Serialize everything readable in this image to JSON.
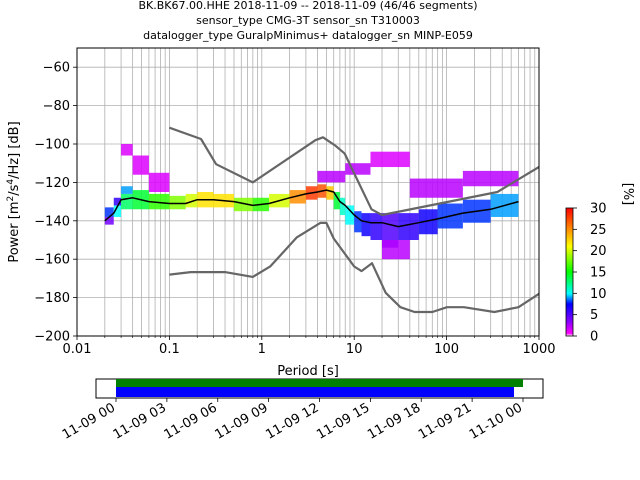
{
  "title_lines": [
    "BK.BK67.00.HHE   2018-11-09 -- 2018-11-09  (46/46 segments)",
    "sensor_type CMG-3T sensor_sn T310003",
    "datalogger_type GuralpMinimus+ datalogger_sn MINP-E059"
  ],
  "colorbar": {
    "label": "[%]",
    "ticks": [
      "0",
      "5",
      "10",
      "15",
      "20",
      "25",
      "30"
    ],
    "range": [
      0,
      30
    ]
  },
  "timeline": {
    "tick_labels": [
      "11-09 00",
      "11-09 03",
      "11-09 06",
      "11-09 09",
      "11-09 12",
      "11-09 15",
      "11-09 18",
      "11-09 21",
      "11-10 00"
    ],
    "green_bar_color": "#008000",
    "blue_bar_color": "#0000ff"
  },
  "chart_data": {
    "type": "heatmap",
    "title": "BK.BK67.00.HHE   2018-11-09 -- 2018-11-09  (46/46 segments)",
    "xlabel": "Period [s]",
    "ylabel_parts": [
      "Power [m",
      "2",
      "/s",
      "4",
      "/Hz] [dB]"
    ],
    "x_scale": "log",
    "xlim": [
      0.01,
      1000
    ],
    "ylim": [
      -200,
      -50
    ],
    "x_tick_values": [
      0.01,
      0.1,
      1,
      10,
      100,
      1000
    ],
    "x_tick_labels": [
      "0.01",
      "0.1",
      "1",
      "10",
      "100",
      "1000"
    ],
    "y_tick_values": [
      -200,
      -180,
      -160,
      -140,
      -120,
      -100,
      -80,
      -60
    ],
    "y_tick_labels": [
      "−200",
      "−180",
      "−160",
      "−140",
      "−120",
      "−100",
      "−80",
      "−60"
    ],
    "grid": true,
    "series": [
      {
        "style": "noise-model-high",
        "color": "#666666",
        "x": [
          0.1,
          0.22,
          0.32,
          0.8,
          3.8,
          4.6,
          6.3,
          7.9,
          15.4,
          20,
          354.8,
          1000
        ],
        "y": [
          -91.5,
          -97.4,
          -110.5,
          -120,
          -98,
          -96.5,
          -101,
          -105,
          -134,
          -137,
          -125,
          -112
        ]
      },
      {
        "style": "noise-model-low",
        "color": "#666666",
        "x": [
          0.1,
          0.17,
          0.4,
          0.8,
          1.24,
          2.4,
          4.3,
          5,
          6,
          10,
          12,
          15.6,
          21.9,
          31.6,
          45,
          70,
          101,
          154,
          328,
          600,
          1000
        ],
        "y": [
          -168,
          -166.7,
          -166.7,
          -169.2,
          -163.7,
          -148.6,
          -141.1,
          -141.1,
          -149.2,
          -163.8,
          -166.2,
          -162.1,
          -177.5,
          -185,
          -187.5,
          -187.5,
          -185,
          -185,
          -187.5,
          -185,
          -178
        ]
      },
      {
        "style": "mode",
        "color": "#000000",
        "x": [
          0.02,
          0.025,
          0.03,
          0.04,
          0.06,
          0.1,
          0.15,
          0.2,
          0.3,
          0.5,
          0.8,
          1.2,
          2,
          3,
          4,
          5,
          6,
          7,
          8,
          10,
          12,
          15,
          20,
          30,
          50,
          80,
          150,
          300,
          600
        ],
        "y": [
          -140,
          -136,
          -129,
          -128,
          -130,
          -131,
          -131,
          -129,
          -129,
          -130,
          -132,
          -131,
          -128,
          -126,
          -125,
          -124,
          -125,
          -130,
          -132,
          -137,
          -140,
          -141,
          -141,
          -143,
          -141,
          -139,
          -136,
          -134,
          -130
        ]
      }
    ],
    "heatmap_cells": [
      {
        "x": [
          0.02,
          0.025
        ],
        "y": [
          -142,
          -138
        ],
        "pct": 4
      },
      {
        "x": [
          0.02,
          0.025
        ],
        "y": [
          -138,
          -133
        ],
        "pct": 8
      },
      {
        "x": [
          0.025,
          0.03
        ],
        "y": [
          -138,
          -132
        ],
        "pct": 10
      },
      {
        "x": [
          0.025,
          0.03
        ],
        "y": [
          -132,
          -128
        ],
        "pct": 6
      },
      {
        "x": [
          0.03,
          0.04
        ],
        "y": [
          -134,
          -126
        ],
        "pct": 13
      },
      {
        "x": [
          0.03,
          0.04
        ],
        "y": [
          -126,
          -122
        ],
        "pct": 9
      },
      {
        "x": [
          0.04,
          0.06
        ],
        "y": [
          -134,
          -124
        ],
        "pct": 14
      },
      {
        "x": [
          0.06,
          0.1
        ],
        "y": [
          -134,
          -126
        ],
        "pct": 16
      },
      {
        "x": [
          0.1,
          0.15
        ],
        "y": [
          -134,
          -127
        ],
        "pct": 18
      },
      {
        "x": [
          0.15,
          0.2
        ],
        "y": [
          -133,
          -126
        ],
        "pct": 20
      },
      {
        "x": [
          0.2,
          0.3
        ],
        "y": [
          -133,
          -125
        ],
        "pct": 22
      },
      {
        "x": [
          0.3,
          0.5
        ],
        "y": [
          -133,
          -126
        ],
        "pct": 22
      },
      {
        "x": [
          0.5,
          0.8
        ],
        "y": [
          -135,
          -128
        ],
        "pct": 18
      },
      {
        "x": [
          0.8,
          1.2
        ],
        "y": [
          -135,
          -128
        ],
        "pct": 16
      },
      {
        "x": [
          1.2,
          2
        ],
        "y": [
          -133,
          -126
        ],
        "pct": 20
      },
      {
        "x": [
          2,
          3
        ],
        "y": [
          -131,
          -124
        ],
        "pct": 25
      },
      {
        "x": [
          3,
          4
        ],
        "y": [
          -129,
          -122
        ],
        "pct": 28
      },
      {
        "x": [
          4,
          5
        ],
        "y": [
          -128,
          -121
        ],
        "pct": 27
      },
      {
        "x": [
          5,
          6
        ],
        "y": [
          -129,
          -122
        ],
        "pct": 23
      },
      {
        "x": [
          6,
          7
        ],
        "y": [
          -134,
          -125
        ],
        "pct": 14
      },
      {
        "x": [
          7,
          8
        ],
        "y": [
          -137,
          -128
        ],
        "pct": 11
      },
      {
        "x": [
          8,
          10
        ],
        "y": [
          -142,
          -132
        ],
        "pct": 10
      },
      {
        "x": [
          10,
          12
        ],
        "y": [
          -146,
          -135
        ],
        "pct": 8
      },
      {
        "x": [
          12,
          15
        ],
        "y": [
          -148,
          -136
        ],
        "pct": 7
      },
      {
        "x": [
          15,
          20
        ],
        "y": [
          -150,
          -136
        ],
        "pct": 6
      },
      {
        "x": [
          20,
          30
        ],
        "y": [
          -154,
          -136
        ],
        "pct": 5
      },
      {
        "x": [
          30,
          50
        ],
        "y": [
          -150,
          -136
        ],
        "pct": 6
      },
      {
        "x": [
          50,
          80
        ],
        "y": [
          -147,
          -134
        ],
        "pct": 7
      },
      {
        "x": [
          80,
          150
        ],
        "y": [
          -144,
          -131
        ],
        "pct": 8
      },
      {
        "x": [
          150,
          300
        ],
        "y": [
          -141,
          -129
        ],
        "pct": 8
      },
      {
        "x": [
          300,
          600
        ],
        "y": [
          -138,
          -126
        ],
        "pct": 9
      },
      {
        "x": [
          0.03,
          0.04
        ],
        "y": [
          -106,
          -100
        ],
        "pct": 1
      },
      {
        "x": [
          0.04,
          0.06
        ],
        "y": [
          -116,
          -106
        ],
        "pct": 1
      },
      {
        "x": [
          0.06,
          0.1
        ],
        "y": [
          -125,
          -115
        ],
        "pct": 1
      },
      {
        "x": [
          4,
          8
        ],
        "y": [
          -120,
          -114
        ],
        "pct": 2
      },
      {
        "x": [
          8,
          15
        ],
        "y": [
          -116,
          -110
        ],
        "pct": 2
      },
      {
        "x": [
          15,
          40
        ],
        "y": [
          -112,
          -104
        ],
        "pct": 1
      },
      {
        "x": [
          40,
          150
        ],
        "y": [
          -128,
          -118
        ],
        "pct": 2
      },
      {
        "x": [
          150,
          600
        ],
        "y": [
          -122,
          -114
        ],
        "pct": 2
      },
      {
        "x": [
          20,
          40
        ],
        "y": [
          -160,
          -150
        ],
        "pct": 2
      }
    ]
  }
}
